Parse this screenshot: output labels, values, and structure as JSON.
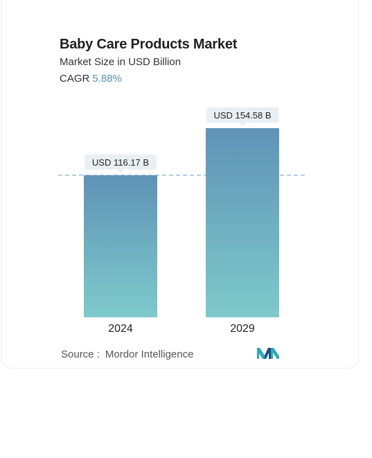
{
  "chart_data": {
    "type": "bar",
    "title": "Baby Care Products Market",
    "subtitle": "Market Size in USD Billion",
    "cagr_label": "CAGR",
    "cagr_value": "5.88%",
    "categories": [
      "2024",
      "2029"
    ],
    "values": [
      116.17,
      154.58
    ],
    "data_labels": [
      "USD 116.17 B",
      "USD 154.58 B"
    ],
    "reference_line": 116.17,
    "colors": {
      "bar_top": "#5f93b7",
      "bar_bottom": "#7ecacb",
      "reference": "#6f9ac0",
      "label_bg": "#e9f0f4"
    }
  },
  "source": {
    "label": "Source :",
    "value": "Mordor Intelligence"
  },
  "logo": {
    "icon": "mordor-intelligence-logo-icon",
    "colors": [
      "#2fa9b7",
      "#1d4e79"
    ]
  }
}
